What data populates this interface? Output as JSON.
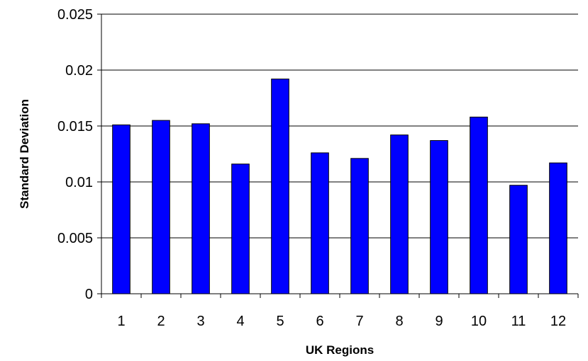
{
  "chart_data": {
    "type": "bar",
    "title": "",
    "xlabel": "UK Regions",
    "ylabel": "Standard Deviation",
    "categories": [
      "1",
      "2",
      "3",
      "4",
      "5",
      "6",
      "7",
      "8",
      "9",
      "10",
      "11",
      "12"
    ],
    "values": [
      0.0151,
      0.0155,
      0.0152,
      0.0116,
      0.0192,
      0.0126,
      0.0121,
      0.0142,
      0.0137,
      0.0158,
      0.0097,
      0.0117
    ],
    "ylim": [
      0,
      0.025
    ],
    "yticks": [
      "0",
      "0.005",
      "0.01",
      "0.015",
      "0.02",
      "0.025"
    ],
    "grid": "horizontal",
    "legend": "none",
    "bar_color": "#0000ff",
    "bar_edge_color": "#000000"
  }
}
